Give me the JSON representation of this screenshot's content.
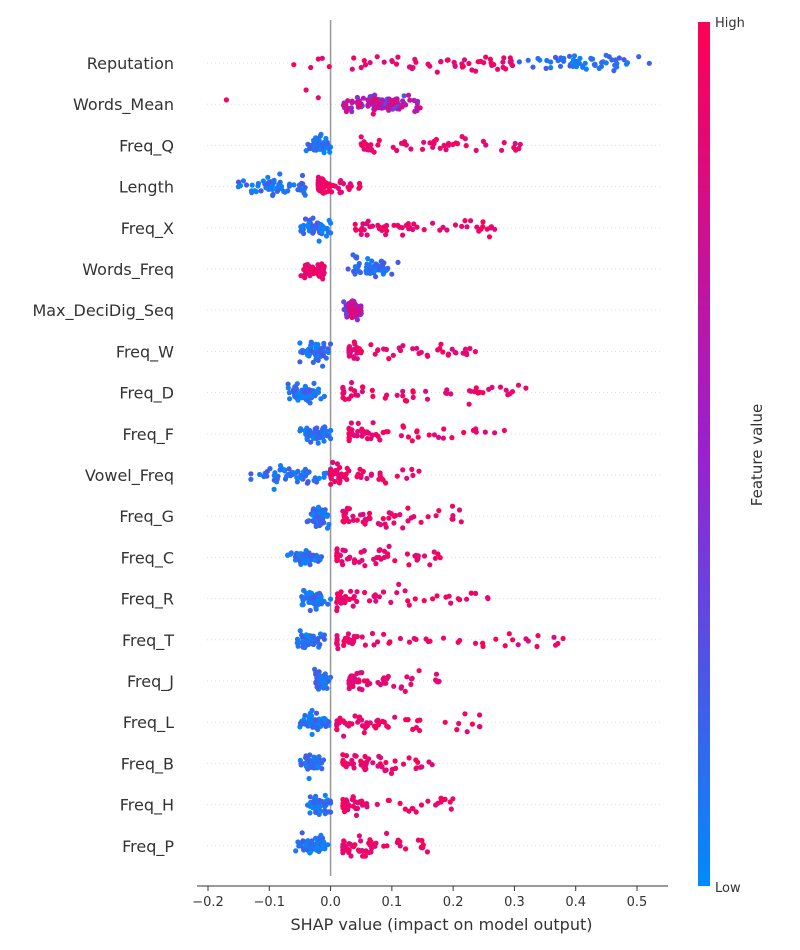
{
  "chart_data": {
    "type": "scatter",
    "subtype": "shap-beeswarm",
    "title": "",
    "xlabel": "SHAP value (impact on model output)",
    "ylabel": "",
    "xlim": [
      -0.22,
      0.56
    ],
    "xticks": [
      -0.2,
      -0.1,
      0.0,
      0.1,
      0.2,
      0.3,
      0.4,
      0.5
    ],
    "xtick_labels": [
      "−0.2",
      "−0.1",
      "0.0",
      "0.1",
      "0.2",
      "0.3",
      "0.4",
      "0.5"
    ],
    "zero_line": 0.0,
    "colorbar": {
      "title": "Feature value",
      "high_label": "High",
      "low_label": "Low",
      "high_color": "#ff0052",
      "mid_color": "#9a20d0",
      "low_color": "#008bfb"
    },
    "features": [
      {
        "name": "Reputation",
        "high_range": [
          -0.06,
          0.3
        ],
        "low_range": [
          0.3,
          0.52
        ],
        "outliers": [
          [
            -0.06,
            0.95
          ],
          [
            -0.02,
            0.9
          ],
          [
            0.05,
            0.9
          ],
          [
            0.1,
            0.85
          ]
        ],
        "high_side": "left"
      },
      {
        "name": "Words_Mean",
        "high_range": [
          0.02,
          0.15
        ],
        "low_range": [
          0.05,
          0.12
        ],
        "outliers": [
          [
            -0.17,
            0.95
          ],
          [
            -0.04,
            0.9
          ],
          [
            -0.02,
            0.85
          ]
        ],
        "high_side": "mixed"
      },
      {
        "name": "Freq_Q",
        "high_range": [
          0.05,
          0.31
        ],
        "low_range": [
          -0.04,
          0.0
        ],
        "outliers": [],
        "high_side": "right"
      },
      {
        "name": "Length",
        "high_range": [
          -0.02,
          0.05
        ],
        "low_range": [
          -0.16,
          -0.02
        ],
        "outliers": [],
        "high_side": "right"
      },
      {
        "name": "Freq_X",
        "high_range": [
          0.04,
          0.27
        ],
        "low_range": [
          -0.05,
          0.0
        ],
        "outliers": [],
        "high_side": "right"
      },
      {
        "name": "Words_Freq",
        "high_range": [
          -0.05,
          -0.01
        ],
        "low_range": [
          0.02,
          0.11
        ],
        "outliers": [],
        "high_side": "left"
      },
      {
        "name": "Max_DeciDig_Seq",
        "high_range": [
          0.03,
          0.05
        ],
        "low_range": [
          0.02,
          0.05
        ],
        "outliers": [],
        "high_side": "mixed"
      },
      {
        "name": "Freq_W",
        "high_range": [
          0.03,
          0.24
        ],
        "low_range": [
          -0.05,
          0.0
        ],
        "outliers": [],
        "high_side": "right"
      },
      {
        "name": "Freq_D",
        "high_range": [
          0.02,
          0.32
        ],
        "low_range": [
          -0.07,
          -0.01
        ],
        "outliers": [],
        "high_side": "right"
      },
      {
        "name": "Freq_F",
        "high_range": [
          0.03,
          0.29
        ],
        "low_range": [
          -0.05,
          0.0
        ],
        "outliers": [],
        "high_side": "right"
      },
      {
        "name": "Vowel_Freq",
        "high_range": [
          0.0,
          0.15
        ],
        "low_range": [
          -0.13,
          0.0
        ],
        "outliers": [],
        "high_side": "right"
      },
      {
        "name": "Freq_G",
        "high_range": [
          0.02,
          0.24
        ],
        "low_range": [
          -0.04,
          0.0
        ],
        "outliers": [],
        "high_side": "right"
      },
      {
        "name": "Freq_C",
        "high_range": [
          0.01,
          0.2
        ],
        "low_range": [
          -0.07,
          -0.01
        ],
        "outliers": [],
        "high_side": "right"
      },
      {
        "name": "Freq_R",
        "high_range": [
          0.01,
          0.27
        ],
        "low_range": [
          -0.05,
          0.0
        ],
        "outliers": [],
        "high_side": "right"
      },
      {
        "name": "Freq_T",
        "high_range": [
          0.01,
          0.38
        ],
        "low_range": [
          -0.06,
          -0.01
        ],
        "outliers": [],
        "high_side": "right"
      },
      {
        "name": "Freq_J",
        "high_range": [
          0.03,
          0.18
        ],
        "low_range": [
          -0.03,
          0.0
        ],
        "outliers": [],
        "high_side": "right"
      },
      {
        "name": "Freq_L",
        "high_range": [
          0.01,
          0.26
        ],
        "low_range": [
          -0.05,
          0.0
        ],
        "outliers": [],
        "high_side": "right"
      },
      {
        "name": "Freq_B",
        "high_range": [
          0.02,
          0.19
        ],
        "low_range": [
          -0.05,
          -0.01
        ],
        "outliers": [],
        "high_side": "right"
      },
      {
        "name": "Freq_H",
        "high_range": [
          0.02,
          0.2
        ],
        "low_range": [
          -0.04,
          0.0
        ],
        "outliers": [],
        "high_side": "right"
      },
      {
        "name": "Freq_P",
        "high_range": [
          0.02,
          0.16
        ],
        "low_range": [
          -0.06,
          0.0
        ],
        "outliers": [],
        "high_side": "right"
      }
    ]
  }
}
